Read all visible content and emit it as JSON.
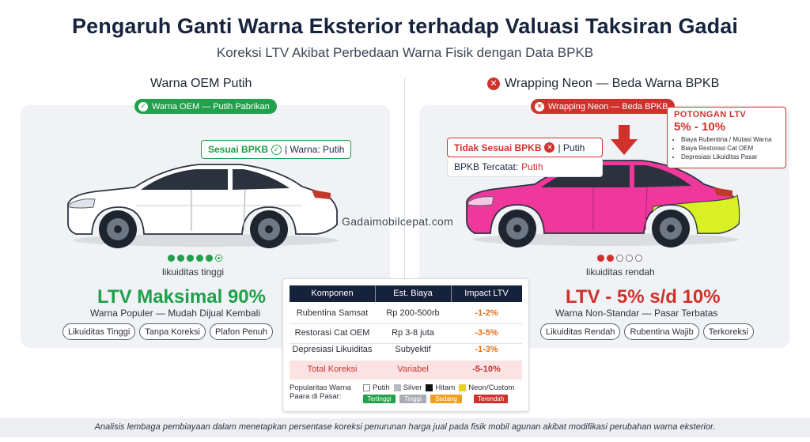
{
  "header": {
    "title": "Pengaruh Ganti Warna Eksterior terhadap Valuasi Taksiran Gadai",
    "subtitle": "Koreksi LTV Akibat Perbedaan Warna Fisik dengan Data BPKB"
  },
  "left": {
    "heading": "Warna OEM Putih",
    "pill": "Warna OEM — Putih Pabrikan",
    "callout_status": "Sesuai BPKB",
    "callout_rest": "| Warna: Putih",
    "liquidity": "likuiditas tinggi",
    "ltv": "LTV Maksimal 90%",
    "note": "Warna Populer — Mudah Dijual Kembali",
    "tags": [
      "Likuiditas Tinggi",
      "Tanpa Koreksi",
      "Plafon Penuh"
    ],
    "car_color": "#ffffff"
  },
  "right": {
    "heading": "Wrapping Neon — Beda Warna BPKB",
    "pill": "Wrapping Neon — Beda BPKB",
    "callout_status": "Tidak Sesuai BPKB",
    "callout_rest": "| Putih",
    "bpkb_label": "BPKB Tercatat:",
    "bpkb_value": "Putih",
    "potongan_title": "POTONGAN LTV",
    "potongan_value": "5% - 10%",
    "potongan_items": [
      "Biaya Rubentina / Mutasi Warna",
      "Biaya Restorasi Cat OEM",
      "Depresiasi Likuiditas Pasar"
    ],
    "liquidity": "likuiditas rendah",
    "ltv": "LTV - 5% s/d 10%",
    "note": "Warna Non-Standar — Pasar Terbatas",
    "tags": [
      "Likuiditas Rendah",
      "Rubentina Wajib",
      "Terkoreksi"
    ],
    "car_color": "#f0379c",
    "accent_color": "#d8f024"
  },
  "watermark": "Gadaimobilcepat.com",
  "table": {
    "headers": [
      "Komponen",
      "Est. Biaya",
      "Impact LTV"
    ],
    "rows": [
      [
        "Rubentina Samsat",
        "Rp 200-500rb",
        "-1-2%"
      ],
      [
        "Restorasi Cat OEM",
        "Rp 3-8 juta",
        "-3-5%"
      ],
      [
        "Depresiasi Likuiditas",
        "Subyektif",
        "-1-3%"
      ]
    ],
    "total": [
      "Total Koreksi",
      "Variabel",
      "-5-10%"
    ],
    "legend_label": [
      "Popularitas Warna",
      "Paara di Pasar:"
    ],
    "legend": [
      {
        "label": "Putih",
        "level": "Tertinggi",
        "swatch": "#ffffff",
        "badge": "#22a04b"
      },
      {
        "label": "Silver",
        "level": "Tinggi",
        "swatch": "#b8bcc2",
        "badge": "#a9adb3"
      },
      {
        "label": "Hitam",
        "level": "Sedang",
        "swatch": "#111111",
        "badge": "#f0a020"
      },
      {
        "label": "Neon/Custom",
        "level": "Terendah",
        "swatch": "#e8d21a",
        "badge": "#d0312d"
      }
    ]
  },
  "footer": "Analisis lembaga pembiayaan dalam menetapkan persentase koreksi penurunan harga jual pada fisik mobil agunan akibat modifikasi perubahan warna eksterior."
}
